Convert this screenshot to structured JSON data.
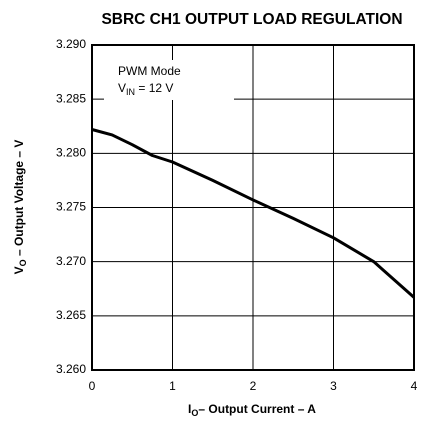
{
  "chart_data": {
    "type": "line",
    "title": "SBRC CH1 OUTPUT LOAD REGULATION",
    "xlabel": {
      "main": "I",
      "sub": "O",
      "rest": "– Output Current – A"
    },
    "ylabel": {
      "main": "V",
      "sub": "O",
      "rest": " – Output Voltage – V"
    },
    "annotation": {
      "line1": "PWM Mode",
      "main": "V",
      "sub": "IN",
      "rest": " = 12 V"
    },
    "x": [
      0,
      0.25,
      0.5,
      0.75,
      1,
      1.5,
      2,
      2.5,
      3,
      3.5,
      4
    ],
    "series": [
      {
        "color": "#000000",
        "values": [
          3.2822,
          3.2817,
          3.2808,
          3.2798,
          3.2792,
          3.2775,
          3.2757,
          3.274,
          3.2722,
          3.27,
          3.2667
        ]
      }
    ],
    "xlim": [
      0,
      4
    ],
    "xticks": [
      0,
      1,
      2,
      3,
      4
    ],
    "ylim": [
      3.26,
      3.29
    ],
    "yticks": [
      {
        "value": 3.26,
        "label": "3.260"
      },
      {
        "value": 3.265,
        "label": "3.265"
      },
      {
        "value": 3.27,
        "label": "3.270"
      },
      {
        "value": 3.275,
        "label": "3.275"
      },
      {
        "value": 3.28,
        "label": "3.280"
      },
      {
        "value": 3.285,
        "label": "3.285"
      },
      {
        "value": 3.29,
        "label": "3.290"
      }
    ],
    "grid": true
  }
}
